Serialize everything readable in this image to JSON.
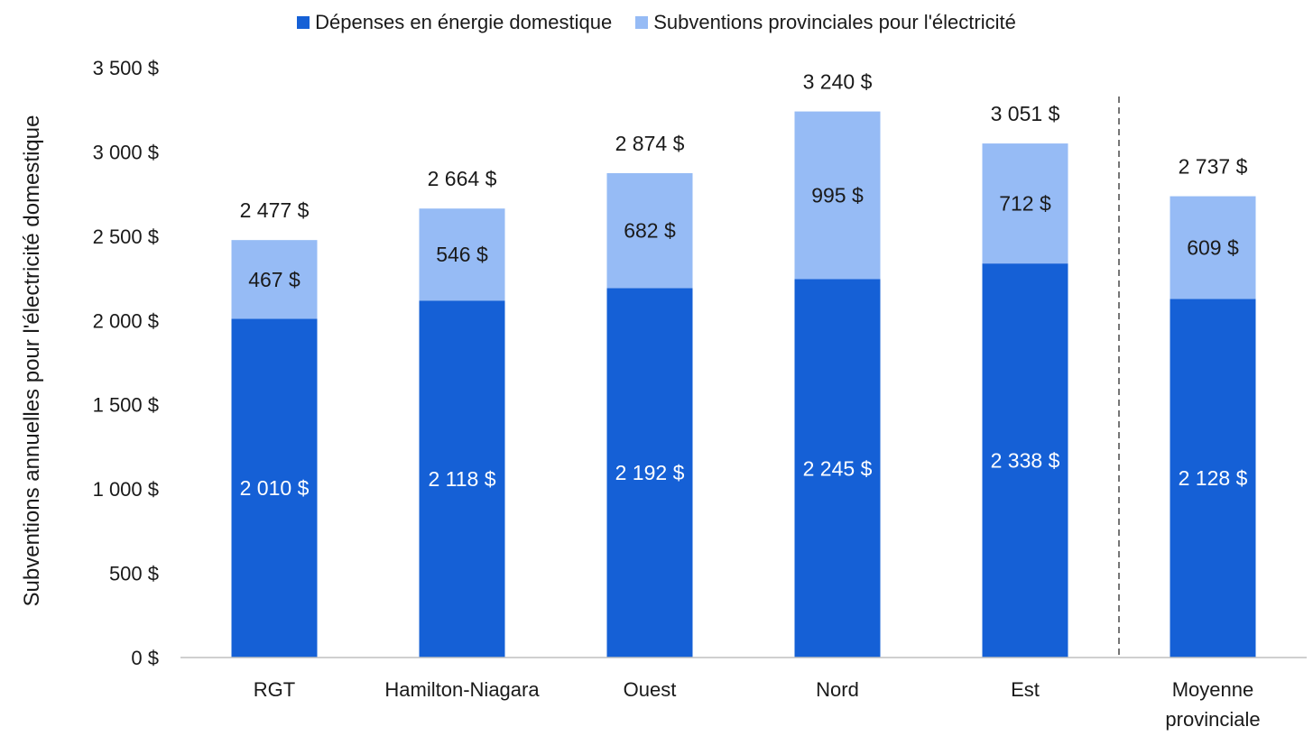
{
  "chart_data": {
    "type": "bar",
    "stacked": true,
    "title": "",
    "ylabel": "Subventions annuelles pour l'électricité domestique",
    "xlabel": "",
    "ylim": [
      0,
      3500
    ],
    "yticks": [
      0,
      500,
      1000,
      1500,
      2000,
      2500,
      3000,
      3500
    ],
    "ytick_labels": [
      "0 $",
      "500 $",
      "1 000 $",
      "1 500 $",
      "2 000 $",
      "2 500 $",
      "3 000 $",
      "3 500 $"
    ],
    "categories": [
      "RGT",
      "Hamilton-Niagara",
      "Ouest",
      "Nord",
      "Est",
      "Moyenne provinciale"
    ],
    "series": [
      {
        "name": "Dépenses en énergie domestique",
        "color": "#1560d6",
        "values": [
          2010,
          2118,
          2192,
          2245,
          2338,
          2128
        ],
        "labels": [
          "2 010 $",
          "2 118 $",
          "2 192 $",
          "2 245 $",
          "2 338 $",
          "2 128 $"
        ]
      },
      {
        "name": "Subventions provinciales pour l'électricité",
        "color": "#96bbf5",
        "values": [
          467,
          546,
          682,
          995,
          712,
          609
        ],
        "labels": [
          "467 $",
          "546 $",
          "682 $",
          "995 $",
          "712 $",
          "609 $"
        ]
      }
    ],
    "totals": [
      2477,
      2664,
      2874,
      3240,
      3051,
      2737
    ],
    "total_labels": [
      "2 477 $",
      "2 664 $",
      "2 874 $",
      "3 240 $",
      "3 051 $",
      "2 737 $"
    ],
    "separator_after_category": "Est",
    "legend_position": "top-center"
  }
}
